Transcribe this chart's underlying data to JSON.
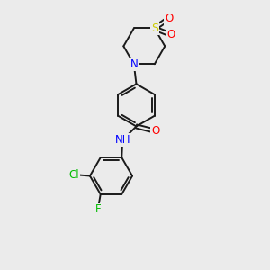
{
  "bg_color": "#ebebeb",
  "bond_color": "#1a1a1a",
  "atom_colors": {
    "N": "#0000ff",
    "O": "#ff0000",
    "S": "#cccc00",
    "Cl": "#00bb00",
    "F": "#00bb00",
    "C": "#1a1a1a",
    "H": "#1a1a1a"
  },
  "lw": 1.4,
  "fs": 8.5
}
